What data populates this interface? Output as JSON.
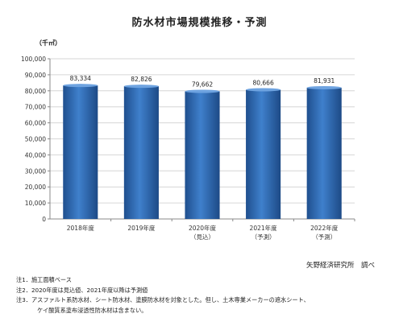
{
  "chart_data": {
    "type": "bar",
    "title": "防水材市場規模推移・予測",
    "unit_label": "（千㎡）",
    "categories": [
      [
        "2018年度"
      ],
      [
        "2019年度"
      ],
      [
        "2020年度",
        "（見込）"
      ],
      [
        "2021年度",
        "（予測）"
      ],
      [
        "2022年度",
        "（予測）"
      ]
    ],
    "values": [
      83334,
      82826,
      79662,
      80666,
      81931
    ],
    "data_labels": [
      "83,334",
      "82,826",
      "79,662",
      "80,666",
      "81,931"
    ],
    "ylim": [
      0,
      100000
    ],
    "yticks": [
      0,
      10000,
      20000,
      30000,
      40000,
      50000,
      60000,
      70000,
      80000,
      90000,
      100000
    ],
    "ytick_labels": [
      "0",
      "10,000",
      "20,000",
      "30,000",
      "40,000",
      "50,000",
      "60,000",
      "70,000",
      "80,000",
      "90,000",
      "100,000"
    ],
    "grid": true,
    "legend": "none",
    "bar_color": "#2f6db5"
  },
  "source": "矢野経済研究所　調べ",
  "notes": [
    "注1．施工面積ベース",
    "注2．2020年度は見込値、2021年度以降は予測値",
    "注3．アスファルト系防水材、シート防水材、塗膜防水材を対象とした。但し、土木専業メーカーの遮水シート、",
    "ケイ酸質系塗布浸透性防水材は含まない。"
  ]
}
